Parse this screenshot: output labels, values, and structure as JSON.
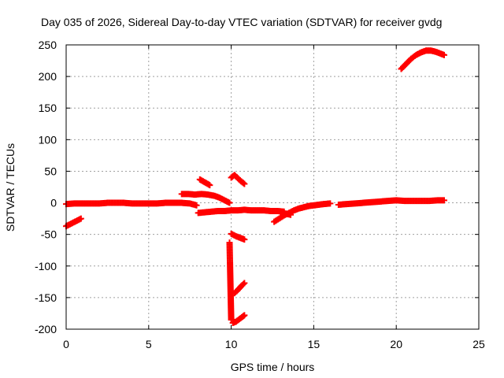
{
  "chart_data": {
    "type": "scatter",
    "title": "Day 035 of 2026, Sidereal Day-to-day VTEC variation (SDTVAR) for receiver gvdg",
    "xlabel": "GPS time / hours",
    "ylabel": "SDTVAR / TECUs",
    "xlim": [
      0,
      25
    ],
    "ylim": [
      -200,
      250
    ],
    "x_ticks": [
      0,
      5,
      10,
      15,
      20,
      25
    ],
    "y_ticks": [
      -200,
      -150,
      -100,
      -50,
      0,
      50,
      100,
      150,
      200,
      250
    ],
    "grid": true,
    "marker": "plus",
    "color": "#ff0000",
    "segments": [
      {
        "name": "main-band-early",
        "points": [
          [
            0.0,
            -2
          ],
          [
            0.5,
            -1
          ],
          [
            1.0,
            -1
          ],
          [
            1.5,
            -1
          ],
          [
            2.0,
            -1
          ],
          [
            2.5,
            0
          ],
          [
            3.0,
            0
          ],
          [
            3.5,
            0
          ],
          [
            4.0,
            -1
          ],
          [
            4.5,
            -1
          ],
          [
            5.0,
            -1
          ],
          [
            5.5,
            -1
          ],
          [
            6.0,
            0
          ],
          [
            6.5,
            0
          ],
          [
            7.0,
            0
          ],
          [
            7.5,
            -1
          ],
          [
            7.9,
            -4
          ]
        ]
      },
      {
        "name": "start-decline",
        "points": [
          [
            0.0,
            -37
          ],
          [
            0.3,
            -33
          ],
          [
            0.6,
            -29
          ],
          [
            0.9,
            -25
          ]
        ]
      },
      {
        "name": "upper-branch-7h",
        "points": [
          [
            7.0,
            14
          ],
          [
            7.4,
            14
          ],
          [
            7.8,
            13
          ],
          [
            8.2,
            14
          ],
          [
            8.6,
            13
          ],
          [
            9.0,
            11
          ],
          [
            9.3,
            8
          ],
          [
            9.6,
            4
          ],
          [
            9.9,
            0
          ]
        ]
      },
      {
        "name": "short-arc-8h",
        "points": [
          [
            8.1,
            37
          ],
          [
            8.3,
            34
          ],
          [
            8.5,
            31
          ],
          [
            8.7,
            28
          ]
        ]
      },
      {
        "name": "lower-branch-8h",
        "points": [
          [
            8.0,
            -16
          ],
          [
            8.4,
            -15
          ],
          [
            8.8,
            -14
          ],
          [
            9.2,
            -13
          ],
          [
            9.6,
            -13
          ],
          [
            10.0,
            -12
          ],
          [
            10.4,
            -12
          ],
          [
            10.8,
            -11
          ],
          [
            11.2,
            -12
          ],
          [
            11.6,
            -12
          ],
          [
            12.0,
            -12
          ],
          [
            12.4,
            -13
          ],
          [
            12.8,
            -13
          ],
          [
            13.2,
            -14
          ]
        ]
      },
      {
        "name": "arc-positive-10h",
        "points": [
          [
            10.0,
            40
          ],
          [
            10.2,
            44
          ],
          [
            10.4,
            39
          ],
          [
            10.6,
            34
          ],
          [
            10.8,
            30
          ]
        ]
      },
      {
        "name": "arc-negative-10h",
        "points": [
          [
            10.0,
            -49
          ],
          [
            10.3,
            -53
          ],
          [
            10.6,
            -56
          ],
          [
            10.8,
            -58
          ]
        ]
      },
      {
        "name": "arc-descent-10h",
        "points": [
          [
            10.2,
            -143
          ],
          [
            10.4,
            -138
          ],
          [
            10.6,
            -132
          ],
          [
            10.8,
            -127
          ]
        ]
      },
      {
        "name": "arc-bottom-10h",
        "points": [
          [
            10.1,
            -190
          ],
          [
            10.3,
            -188
          ],
          [
            10.5,
            -184
          ],
          [
            10.7,
            -180
          ],
          [
            10.8,
            -178
          ]
        ]
      },
      {
        "name": "isolated-points",
        "points": [
          [
            9.9,
            -63
          ],
          [
            10.0,
            -185
          ]
        ]
      },
      {
        "name": "rise-12h",
        "points": [
          [
            12.6,
            -30
          ],
          [
            12.9,
            -25
          ],
          [
            13.2,
            -20
          ],
          [
            13.5,
            -16
          ],
          [
            13.8,
            -12
          ],
          [
            14.1,
            -9
          ],
          [
            14.4,
            -7
          ],
          [
            14.7,
            -5
          ],
          [
            15.0,
            -4
          ],
          [
            15.3,
            -3
          ],
          [
            15.6,
            -2
          ],
          [
            16.0,
            -1
          ]
        ]
      },
      {
        "name": "dip-13h",
        "points": [
          [
            13.0,
            -15
          ],
          [
            13.3,
            -17
          ],
          [
            13.6,
            -19
          ]
        ]
      },
      {
        "name": "main-band-late",
        "points": [
          [
            16.5,
            -3
          ],
          [
            17.0,
            -2
          ],
          [
            17.5,
            -1
          ],
          [
            18.0,
            0
          ],
          [
            18.5,
            1
          ],
          [
            19.0,
            2
          ],
          [
            19.5,
            3
          ],
          [
            20.0,
            4
          ],
          [
            20.5,
            3
          ],
          [
            21.0,
            3
          ],
          [
            21.5,
            3
          ],
          [
            22.0,
            3
          ],
          [
            22.5,
            4
          ],
          [
            22.9,
            4
          ]
        ]
      },
      {
        "name": "high-arc-20h",
        "points": [
          [
            20.3,
            212
          ],
          [
            20.6,
            220
          ],
          [
            20.9,
            228
          ],
          [
            21.2,
            234
          ],
          [
            21.5,
            238
          ],
          [
            21.8,
            241
          ],
          [
            22.1,
            241
          ],
          [
            22.4,
            239
          ],
          [
            22.7,
            236
          ],
          [
            22.9,
            234
          ]
        ]
      }
    ]
  }
}
